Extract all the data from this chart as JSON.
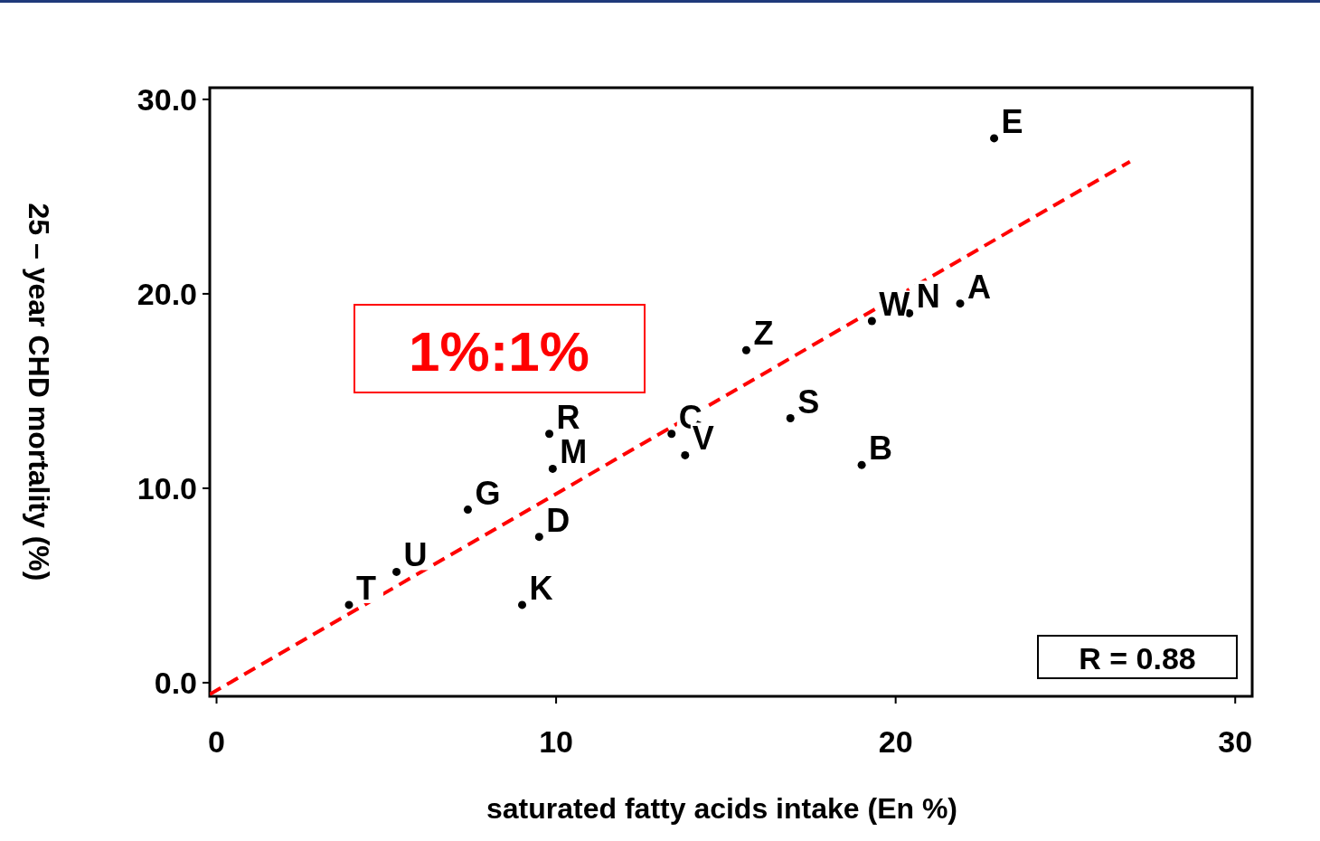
{
  "chart_data": {
    "type": "scatter",
    "xlabel": "saturated  fatty  acids  intake  (En  %)",
    "ylabel": "25 – year  CHD  mortality  (%)",
    "xlim": [
      -0.2,
      30.5
    ],
    "ylim": [
      -0.7,
      30.6
    ],
    "xticks": [
      0,
      10,
      20,
      30
    ],
    "yticks": [
      {
        "value": 0,
        "label": "0.0"
      },
      {
        "value": 10,
        "label": "10.0"
      },
      {
        "value": 20,
        "label": "20.0"
      },
      {
        "value": 30,
        "label": "30.0"
      }
    ],
    "grid": false,
    "series": [
      {
        "type": "scatter",
        "color": "#000000",
        "marker": "circle",
        "x": [
          22.9,
          21.9,
          20.4,
          19.3,
          15.6,
          16.9,
          19.0,
          13.4,
          13.8,
          9.8,
          9.9,
          7.4,
          9.5,
          5.3,
          3.9,
          9.0
        ],
        "values": [
          28.0,
          19.5,
          19.0,
          18.6,
          17.1,
          13.6,
          11.2,
          12.8,
          11.7,
          12.8,
          11.0,
          8.9,
          7.5,
          5.7,
          4.0,
          4.0
        ],
        "value_labels": [
          "E",
          "A",
          "N",
          "W",
          "Z",
          "S",
          "B",
          "C",
          "V",
          "R",
          "M",
          "G",
          "D",
          "U",
          "T",
          "K"
        ]
      },
      {
        "type": "line",
        "color": "#ff0000",
        "line_style": "dashed",
        "marker": "none",
        "x": [
          -0.2,
          26.9
        ],
        "values": [
          -0.6,
          26.8
        ]
      }
    ],
    "annotations": [
      "1%:1%",
      "R  =  0.88"
    ]
  }
}
